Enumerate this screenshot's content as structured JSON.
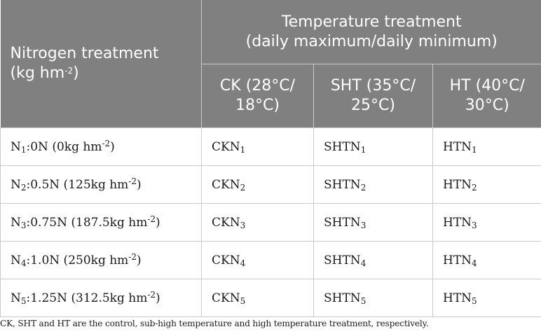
{
  "header": {
    "nitrogen": {
      "line1": "Nitrogen treatment",
      "unit_pre": "(kg hm",
      "unit_sup": "-2",
      "unit_post": ")"
    },
    "temperature": {
      "line1": "Temperature treatment",
      "line2": "(daily maximum/daily minimum)"
    },
    "ck": {
      "line1": "CK (28°C/",
      "line2": "18°C)"
    },
    "sht": {
      "line1": "SHT (35°C/",
      "line2": "25°C)"
    },
    "ht": {
      "line1": "HT (40°C/",
      "line2": "30°C)"
    }
  },
  "rows": [
    {
      "n_base": "N",
      "n_sub": "1",
      "n_rest": ":0N (0kg hm",
      "n_sup": "-2",
      "n_close": ")",
      "ck_base": "CKN",
      "ck_sub": "1",
      "sht_base": "SHTN",
      "sht_sub": "1",
      "ht_base": "HTN",
      "ht_sub": "1"
    },
    {
      "n_base": "N",
      "n_sub": "2",
      "n_rest": ":0.5N (125kg hm",
      "n_sup": "-2",
      "n_close": ")",
      "ck_base": "CKN",
      "ck_sub": "2",
      "sht_base": "SHTN",
      "sht_sub": "2",
      "ht_base": "HTN",
      "ht_sub": "2"
    },
    {
      "n_base": "N",
      "n_sub": "3",
      "n_rest": ":0.75N (187.5kg hm",
      "n_sup": "-2",
      "n_close": ")",
      "ck_base": "CKN",
      "ck_sub": "3",
      "sht_base": "SHTN",
      "sht_sub": "3",
      "ht_base": "HTN",
      "ht_sub": "3"
    },
    {
      "n_base": "N",
      "n_sub": "4",
      "n_rest": ":1.0N (250kg hm",
      "n_sup": "-2",
      "n_close": ")",
      "ck_base": "CKN",
      "ck_sub": "4",
      "sht_base": "SHTN",
      "sht_sub": "4",
      "ht_base": "HTN",
      "ht_sub": "4"
    },
    {
      "n_base": "N",
      "n_sub": "5",
      "n_rest": ":1.25N (312.5kg hm",
      "n_sup": "-2",
      "n_close": ")",
      "ck_base": "CKN",
      "ck_sub": "5",
      "sht_base": "SHTN",
      "sht_sub": "5",
      "ht_base": "HTN",
      "ht_sub": "5"
    }
  ],
  "footnote": "CK, SHT and HT are the control, sub-high temperature and high temperature treatment, respectively.",
  "colors": {
    "header_bg": "#808080",
    "header_text": "#ffffff",
    "border": "#c9c9c9",
    "body_text": "#1a1a1a"
  }
}
